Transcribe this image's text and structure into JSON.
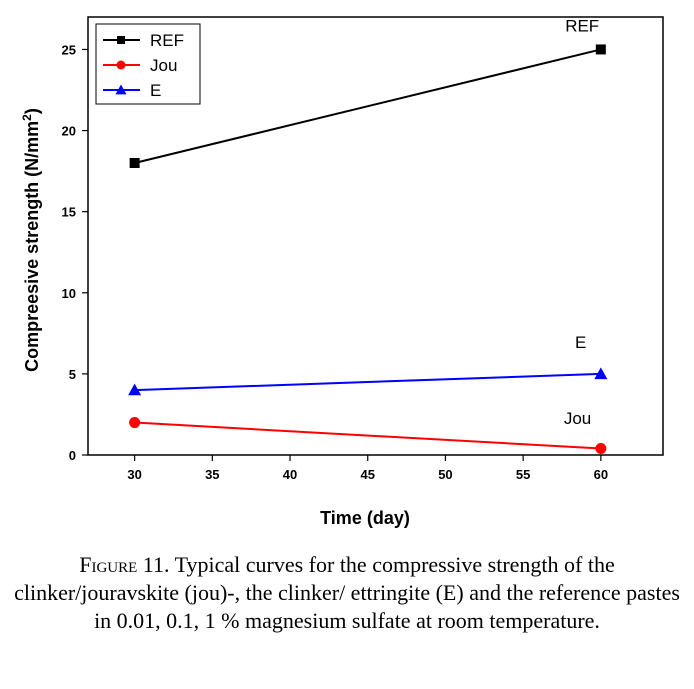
{
  "chart_data": {
    "type": "line",
    "xlabel": "Time (day)",
    "ylabel_main": "Compreesive strength (N/mm",
    "ylabel_sup": "2",
    "ylabel_close": ")",
    "xlim": [
      27,
      64
    ],
    "ylim": [
      0,
      27
    ],
    "xticks": [
      30,
      35,
      40,
      45,
      50,
      55,
      60
    ],
    "yticks": [
      0,
      5,
      10,
      15,
      20,
      25
    ],
    "grid": false,
    "legend_position": "top-left",
    "series": [
      {
        "name": "REF",
        "color": "#000000",
        "marker": "square",
        "x": [
          30,
          60
        ],
        "y": [
          18,
          25
        ]
      },
      {
        "name": "Jou",
        "color": "#ff0000",
        "marker": "circle",
        "x": [
          30,
          60
        ],
        "y": [
          2,
          0.4
        ]
      },
      {
        "name": "E",
        "color": "#0000ff",
        "marker": "triangle",
        "x": [
          30,
          60
        ],
        "y": [
          4,
          5
        ]
      }
    ],
    "annotations": [
      {
        "text": "REF",
        "x": 58.8,
        "y": 26.1
      },
      {
        "text": "E",
        "x": 58.7,
        "y": 6.6
      },
      {
        "text": "Jou",
        "x": 58.5,
        "y": 1.9
      }
    ]
  },
  "caption": {
    "label": "Figure 11.",
    "text": " Typical curves for the compressive strength of the clinker/jouravskite (jou)-, the clinker/ ettringite (E) and the reference pastes in 0.01, 0.1, 1 % magnesium sulfate at room temperature."
  }
}
